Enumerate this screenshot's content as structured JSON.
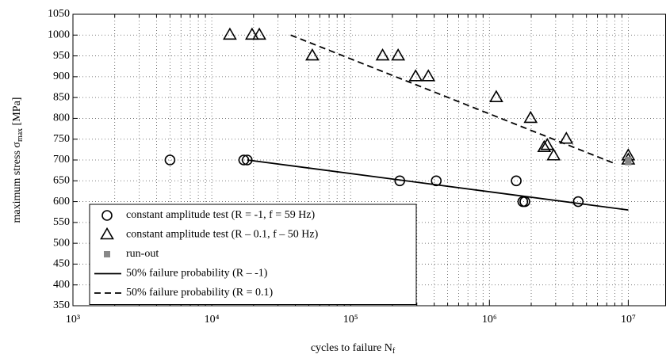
{
  "chart_data": {
    "type": "scatter",
    "x_label": {
      "text": "cycles to failure N",
      "sub": "f"
    },
    "y_label": {
      "text": "maximum stress σ",
      "sub": "max",
      "unit": " [MPa]"
    },
    "log_x": true,
    "grid": true,
    "xlim": [
      1000,
      18700000
    ],
    "ylim": [
      350,
      1050
    ],
    "xticks": [
      {
        "value": 1000,
        "label": "10³"
      },
      {
        "value": 10000,
        "label": "10⁴"
      },
      {
        "value": 100000,
        "label": "10⁵"
      },
      {
        "value": 1000000,
        "label": "10⁶"
      },
      {
        "value": 10000000,
        "label": "10⁷"
      }
    ],
    "xminorticks": [
      2000,
      3000,
      4000,
      5000,
      6000,
      7000,
      8000,
      9000,
      20000,
      30000,
      40000,
      50000,
      60000,
      70000,
      80000,
      90000,
      200000,
      300000,
      400000,
      500000,
      600000,
      700000,
      800000,
      900000,
      2000000,
      3000000,
      4000000,
      5000000,
      6000000,
      7000000,
      8000000,
      9000000
    ],
    "yticks": [
      350,
      400,
      450,
      500,
      550,
      600,
      650,
      700,
      750,
      800,
      850,
      900,
      950,
      1000,
      1050
    ],
    "legend": "lower left",
    "series": [
      {
        "name": "constant amplitude test (R = -1, f = 59 Hz)",
        "marker": "circle",
        "color": "#000000",
        "x": [
          5000,
          17000,
          18000,
          226000,
          414000,
          1560000,
          1740000,
          1800000,
          4360000
        ],
        "values": [
          700,
          700,
          700,
          650,
          650,
          650,
          600,
          600,
          600
        ]
      },
      {
        "name": "constant amplitude test (R – 0.1, f – 50 Hz)",
        "marker": "triangle",
        "color": "#000000",
        "x": [
          13500,
          19500,
          22000,
          53000,
          170000,
          220000,
          294000,
          363000,
          1120000,
          1980000,
          2480000,
          2610000,
          2900000,
          3580000,
          10000000,
          10000000
        ],
        "values": [
          1000,
          1000,
          1000,
          950,
          950,
          950,
          900,
          900,
          850,
          800,
          730,
          735,
          710,
          750,
          710,
          700
        ]
      },
      {
        "name": "run-out",
        "marker": "square",
        "color": "#888888",
        "x": [
          10000000,
          10000000
        ],
        "values": [
          700,
          695
        ]
      },
      {
        "name": "50% failure probability (R – -1)",
        "marker": "line",
        "dash": "none",
        "color": "#000000",
        "x": [
          18000,
          10000000
        ],
        "values": [
          700,
          580
        ]
      },
      {
        "name": "50% failure probability (R = 0.1)",
        "marker": "line",
        "dash": "8 5",
        "color": "#000000",
        "x": [
          37000,
          8200000
        ],
        "values": [
          1000,
          690
        ]
      }
    ]
  }
}
